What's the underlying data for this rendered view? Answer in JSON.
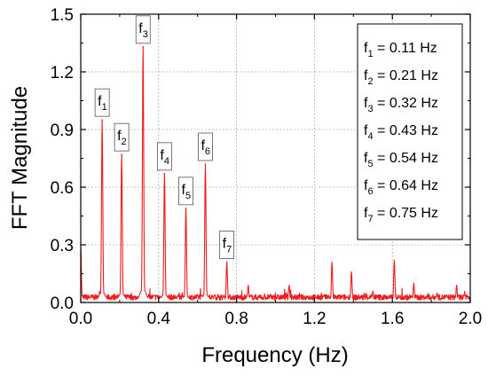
{
  "chart_data": {
    "type": "line",
    "title": "",
    "xlabel": "Frequency (Hz)",
    "ylabel": "FFT Magnitude",
    "xlim": [
      0.0,
      2.0
    ],
    "ylim": [
      0.0,
      1.5
    ],
    "x_ticks": [
      "0.0",
      "0.4",
      "0.8",
      "1.2",
      "1.6",
      "2.0"
    ],
    "y_ticks": [
      "0.0",
      "0.3",
      "0.6",
      "0.9",
      "1.2",
      "1.5"
    ],
    "grid": true,
    "grid_style": "dotted",
    "legend_position": "top-right",
    "series_color": "#ee1c1c",
    "peaks": [
      {
        "label": "f",
        "sub": "1",
        "x": 0.11,
        "y": 0.95
      },
      {
        "label": "f",
        "sub": "2",
        "x": 0.21,
        "y": 0.77
      },
      {
        "label": "f",
        "sub": "3",
        "x": 0.32,
        "y": 1.33
      },
      {
        "label": "f",
        "sub": "4",
        "x": 0.43,
        "y": 0.67
      },
      {
        "label": "f",
        "sub": "5",
        "x": 0.54,
        "y": 0.49
      },
      {
        "label": "f",
        "sub": "6",
        "x": 0.64,
        "y": 0.72
      },
      {
        "label": "f",
        "sub": "7",
        "x": 0.75,
        "y": 0.21
      }
    ],
    "minor_peaks": [
      {
        "x": 0.0,
        "y": 0.29
      },
      {
        "x": 0.86,
        "y": 0.09
      },
      {
        "x": 1.07,
        "y": 0.09
      },
      {
        "x": 1.29,
        "y": 0.21
      },
      {
        "x": 1.39,
        "y": 0.16
      },
      {
        "x": 1.5,
        "y": 0.06
      },
      {
        "x": 1.61,
        "y": 0.22
      },
      {
        "x": 1.71,
        "y": 0.1
      },
      {
        "x": 1.83,
        "y": 0.05
      },
      {
        "x": 1.93,
        "y": 0.09
      }
    ],
    "legend_entries": [
      {
        "label": "f",
        "sub": "1",
        "text": " = 0.11 Hz"
      },
      {
        "label": "f",
        "sub": "2",
        "text": " = 0.21 Hz"
      },
      {
        "label": "f",
        "sub": "3",
        "text": " = 0.32 Hz"
      },
      {
        "label": "f",
        "sub": "4",
        "text": " = 0.43 Hz"
      },
      {
        "label": "f",
        "sub": "5",
        "text": " = 0.54 Hz"
      },
      {
        "label": "f",
        "sub": "6",
        "text": " = 0.64 Hz"
      },
      {
        "label": "f",
        "sub": "7",
        "text": " = 0.75 Hz"
      }
    ]
  }
}
